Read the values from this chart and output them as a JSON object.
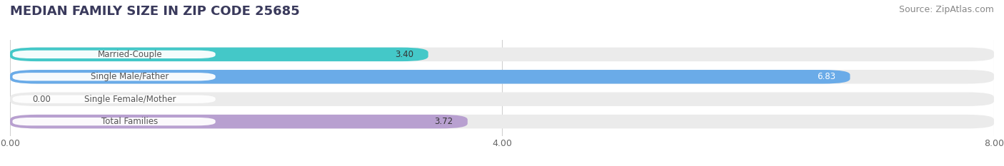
{
  "title": "MEDIAN FAMILY SIZE IN ZIP CODE 25685",
  "source": "Source: ZipAtlas.com",
  "categories": [
    "Married-Couple",
    "Single Male/Father",
    "Single Female/Mother",
    "Total Families"
  ],
  "values": [
    3.4,
    6.83,
    0.0,
    3.72
  ],
  "bar_colors": [
    "#44c8c8",
    "#6aabe8",
    "#f9a8bc",
    "#b8a0d0"
  ],
  "value_label_colors": [
    "#333333",
    "#ffffff",
    "#333333",
    "#333333"
  ],
  "xlim": [
    0,
    8.0
  ],
  "xticks": [
    0.0,
    4.0,
    8.0
  ],
  "xtick_labels": [
    "0.00",
    "4.00",
    "8.00"
  ],
  "bar_height": 0.62,
  "background_color": "#ffffff",
  "bar_bg_color": "#ebebeb",
  "title_fontsize": 13,
  "source_fontsize": 9,
  "label_fontsize": 8.5,
  "value_fontsize": 8.5,
  "tick_fontsize": 9,
  "title_color": "#3a3a5c",
  "source_color": "#888888",
  "label_bg_color": "#ffffff",
  "label_text_color": "#555555",
  "grid_color": "#d0d0d0"
}
